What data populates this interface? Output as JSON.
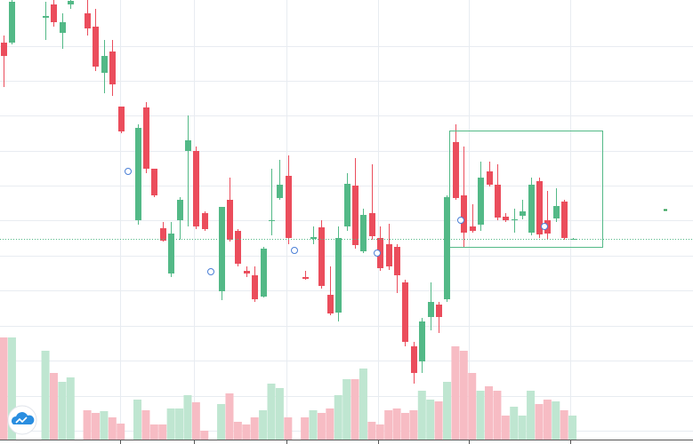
{
  "chart_data": {
    "type": "candlestick",
    "x": [
      0,
      1,
      5,
      6,
      7,
      8,
      10,
      11,
      12,
      13,
      14,
      16,
      17,
      18,
      19,
      20,
      21,
      22,
      23,
      24,
      26,
      27,
      28,
      29,
      30,
      31,
      32,
      33,
      34,
      36,
      37,
      38,
      39,
      40,
      41,
      42,
      43,
      44,
      45,
      46,
      47,
      48,
      49,
      50,
      51,
      52,
      53,
      54,
      55,
      56,
      57,
      58,
      59,
      60,
      61,
      62,
      63,
      64,
      65,
      66,
      67,
      68
    ],
    "open": [
      452,
      452,
      480,
      495,
      463,
      495,
      485,
      470,
      418,
      442,
      380,
      252,
      379,
      310,
      243,
      192,
      252,
      330,
      330,
      260,
      172,
      275,
      240,
      195,
      190,
      166,
      252,
      277,
      302,
      188,
      231,
      244,
      168,
      148,
      245,
      291,
      217,
      260,
      232,
      225,
      222,
      182,
      110,
      93,
      143,
      157,
      163,
      340,
      280,
      245,
      247,
      307,
      292,
      256,
      252,
      257,
      238,
      296,
      252,
      254,
      273,
      231
    ],
    "high": [
      460,
      500,
      498,
      500,
      485,
      500,
      500,
      490,
      455,
      455,
      380,
      360,
      385,
      310,
      250,
      250,
      278,
      370,
      335,
      262,
      267,
      300,
      242,
      200,
      200,
      222,
      310,
      320,
      325,
      195,
      245,
      252,
      200,
      245,
      305,
      322,
      265,
      315,
      245,
      248,
      225,
      185,
      115,
      142,
      182,
      160,
      280,
      360,
      335,
      270,
      318,
      318,
      315,
      260,
      265,
      275,
      300,
      300,
      285,
      288,
      275,
      232
    ],
    "low": [
      402,
      450,
      455,
      470,
      445,
      490,
      460,
      420,
      395,
      392,
      350,
      247,
      305,
      278,
      228,
      188,
      230,
      245,
      242,
      240,
      162,
      228,
      200,
      188,
      160,
      165,
      235,
      275,
      225,
      185,
      225,
      175,
      145,
      138,
      240,
      220,
      215,
      230,
      195,
      196,
      170,
      110,
      68,
      80,
      128,
      125,
      160,
      275,
      222,
      238,
      240,
      290,
      252,
      250,
      238,
      253,
      235,
      232,
      230,
      250,
      230,
      230
    ],
    "close": [
      437,
      498,
      482,
      475,
      475,
      499,
      468,
      425,
      437,
      405,
      352,
      356,
      310,
      280,
      229,
      237,
      275,
      342,
      245,
      242,
      267,
      230,
      203,
      192,
      163,
      220,
      252,
      292,
      232,
      186,
      233,
      178,
      147,
      232,
      293,
      224,
      258,
      234,
      198,
      200,
      190,
      115,
      80,
      138,
      160,
      143,
      278,
      277,
      238,
      240,
      300,
      292,
      255,
      252,
      253,
      262,
      292,
      236,
      237,
      268,
      232,
      231
    ],
    "volume": [
      115,
      115,
      100,
      75,
      65,
      70,
      33,
      30,
      32,
      25,
      18,
      45,
      33,
      17,
      17,
      35,
      35,
      50,
      42,
      10,
      40,
      52,
      20,
      17,
      25,
      33,
      63,
      58,
      25,
      25,
      33,
      30,
      35,
      50,
      68,
      68,
      80,
      20,
      17,
      33,
      35,
      30,
      33,
      55,
      45,
      43,
      65,
      105,
      100,
      75,
      55,
      60,
      55,
      27,
      37,
      27,
      55,
      40,
      45,
      43,
      33,
      27
    ],
    "xlim": [
      -0.43,
      82.4
    ],
    "xticks": [
      13.9,
      22.8,
      33.8,
      44.8,
      55.6,
      67.7
    ],
    "ylim": [
      5,
      500
    ],
    "yticks": [
      448,
      409,
      370,
      330,
      291,
      252,
      212,
      173,
      133,
      94,
      54,
      15
    ],
    "y2lim": [
      0,
      495
    ],
    "grid": true,
    "up_color": "#53b987",
    "down_color": "#eb4d5c",
    "volume_up_color": "#bfe6d1",
    "volume_down_color": "#f7bcc4"
  }
}
